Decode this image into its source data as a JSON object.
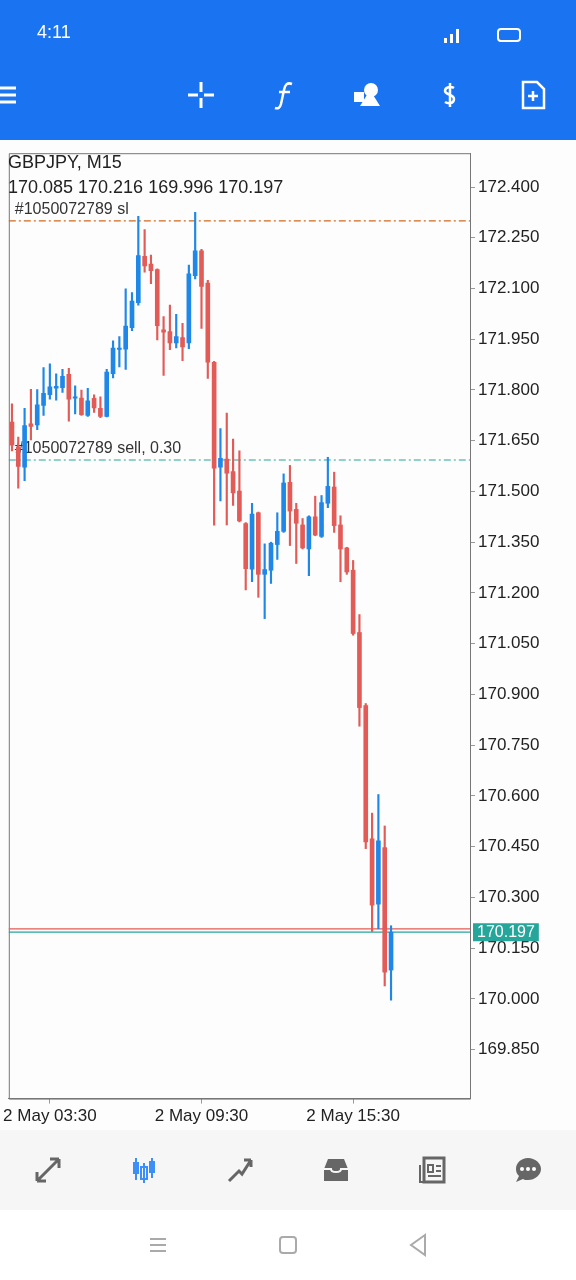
{
  "chart_data": {
    "type": "candlestick",
    "title": "GBPJPY, M15",
    "subtitle": "170.085 170.216 169.996 170.197",
    "annotations": [
      "4:11"
    ],
    "categories": [
      null,
      null,
      null,
      null,
      null,
      null,
      "2 May 03:30",
      null,
      null,
      null,
      null,
      null,
      null,
      null,
      null,
      null,
      null,
      null,
      null,
      null,
      null,
      null,
      null,
      null,
      null,
      null,
      null,
      null,
      null,
      null,
      "2 May 09:30",
      null,
      null,
      null,
      null,
      null,
      null,
      null,
      null,
      null,
      null,
      null,
      null,
      null,
      null,
      null,
      null,
      null,
      null,
      null,
      null,
      null,
      null,
      null,
      "2 May 15:30",
      null,
      null,
      null,
      null,
      null,
      null,
      null,
      null,
      null,
      null,
      null,
      null,
      null,
      null,
      null,
      null,
      null,
      null
    ],
    "ohlc": [
      [
        171.705,
        171.759,
        171.62,
        171.637
      ],
      [
        171.632,
        171.661,
        171.51,
        171.574
      ],
      [
        171.572,
        171.746,
        171.532,
        171.695
      ],
      [
        171.7,
        171.802,
        171.652,
        171.692
      ],
      [
        171.697,
        171.801,
        171.683,
        171.756
      ],
      [
        171.754,
        171.866,
        171.725,
        171.79
      ],
      [
        171.786,
        171.877,
        171.773,
        171.809
      ],
      [
        171.805,
        171.848,
        171.77,
        171.811
      ],
      [
        171.807,
        171.861,
        171.793,
        171.84
      ],
      [
        171.846,
        171.864,
        171.708,
        171.773
      ],
      [
        171.776,
        171.812,
        171.729,
        171.78
      ],
      [
        171.776,
        171.8,
        171.725,
        171.727
      ],
      [
        171.725,
        171.805,
        171.722,
        171.768
      ],
      [
        171.775,
        171.786,
        171.734,
        171.747
      ],
      [
        171.746,
        171.78,
        171.718,
        171.722
      ],
      [
        171.722,
        171.861,
        171.72,
        171.853
      ],
      [
        171.848,
        171.945,
        171.836,
        171.924
      ],
      [
        171.92,
        171.958,
        171.868,
        171.924
      ],
      [
        171.921,
        172.099,
        171.861,
        171.989
      ],
      [
        171.984,
        172.088,
        171.975,
        172.063
      ],
      [
        172.058,
        172.313,
        172.051,
        172.197
      ],
      [
        172.195,
        172.274,
        172.148,
        172.167
      ],
      [
        172.172,
        172.199,
        172.114,
        172.153
      ],
      [
        172.156,
        172.158,
        171.948,
        171.99
      ],
      [
        171.978,
        172.017,
        171.843,
        171.971
      ],
      [
        171.973,
        172.051,
        171.919,
        171.939
      ],
      [
        171.939,
        172.024,
        171.924,
        171.958
      ],
      [
        171.955,
        171.997,
        171.887,
        171.927
      ],
      [
        171.939,
        172.169,
        171.922,
        172.143
      ],
      [
        172.138,
        172.325,
        172.128,
        172.211
      ],
      [
        172.211,
        172.216,
        171.982,
        172.106
      ],
      [
        172.116,
        172.124,
        171.834,
        171.882
      ],
      [
        171.882,
        171.885,
        171.4,
        171.569
      ],
      [
        171.572,
        171.686,
        171.472,
        171.598
      ],
      [
        171.596,
        171.732,
        171.401,
        171.554
      ],
      [
        171.559,
        171.655,
        171.459,
        171.496
      ],
      [
        171.501,
        171.62,
        171.41,
        171.413
      ],
      [
        171.405,
        171.408,
        171.209,
        171.272
      ],
      [
        171.27,
        171.465,
        171.233,
        171.433
      ],
      [
        171.437,
        171.439,
        171.187,
        171.255
      ],
      [
        171.255,
        171.345,
        171.124,
        171.269
      ],
      [
        171.267,
        171.35,
        171.228,
        171.347
      ],
      [
        171.343,
        171.437,
        171.299,
        171.382
      ],
      [
        171.382,
        171.552,
        171.379,
        171.525
      ],
      [
        171.527,
        171.577,
        171.34,
        171.442
      ],
      [
        171.447,
        171.465,
        171.287,
        171.406
      ],
      [
        171.401,
        171.42,
        171.33,
        171.333
      ],
      [
        171.33,
        171.428,
        171.251,
        171.425
      ],
      [
        171.425,
        171.486,
        171.369,
        171.371
      ],
      [
        171.367,
        171.488,
        171.364,
        171.467
      ],
      [
        171.465,
        171.601,
        171.452,
        171.515
      ],
      [
        171.513,
        171.557,
        171.379,
        171.399
      ],
      [
        171.401,
        171.428,
        171.233,
        171.33
      ],
      [
        171.333,
        171.335,
        171.255,
        171.262
      ],
      [
        171.267,
        171.296,
        171.075,
        171.08
      ],
      [
        171.083,
        171.136,
        170.806,
        170.861
      ],
      [
        170.867,
        170.873,
        170.444,
        170.464
      ],
      [
        170.473,
        170.549,
        170.199,
        170.277
      ],
      [
        170.28,
        170.604,
        170.207,
        170.467
      ],
      [
        170.447,
        170.511,
        170.038,
        170.079
      ],
      [
        170.085,
        170.216,
        169.996,
        170.197
      ],
      null,
      null,
      null,
      null,
      null,
      null,
      null,
      null,
      null,
      null,
      null,
      null
    ],
    "colors": [
      "#e35b57",
      "#e35b57",
      "#1f87e8",
      "#e35b57",
      "#1f87e8",
      "#1f87e8",
      "#1f87e8",
      "#1f87e8",
      "#1f87e8",
      "#e35b57",
      "#1f87e8",
      "#e35b57",
      "#1f87e8",
      "#e35b57",
      "#e35b57",
      "#1f87e8",
      "#1f87e8",
      "#1f87e8",
      "#1f87e8",
      "#1f87e8",
      "#1f87e8",
      "#e35b57",
      "#e35b57",
      "#e35b57",
      "#e35b57",
      "#e35b57",
      "#1f87e8",
      "#e35b57",
      "#1f87e8",
      "#1f87e8",
      "#e35b57",
      "#e35b57",
      "#e35b57",
      "#1f87e8",
      "#e35b57",
      "#e35b57",
      "#e35b57",
      "#e35b57",
      "#1f87e8",
      "#e35b57",
      "#1f87e8",
      "#1f87e8",
      "#1f87e8",
      "#1f87e8",
      "#e35b57",
      "#e35b57",
      "#e35b57",
      "#1f87e8",
      "#e35b57",
      "#1f87e8",
      "#1f87e8",
      "#e35b57",
      "#e35b57",
      "#e35b57",
      "#e35b57",
      "#e35b57",
      "#e35b57",
      "#e35b57",
      "#1f87e8",
      "#e35b57",
      "#1f87e8",
      null,
      null,
      null,
      null,
      null,
      null,
      null,
      null,
      null,
      null,
      null,
      null
    ],
    "ylim": [
      169.705,
      172.5
    ],
    "yticks": [
      {
        "value": 169.85,
        "label": "169.850"
      },
      {
        "value": 170,
        "label": "170.000"
      },
      {
        "value": 170.15,
        "label": "170.150"
      },
      {
        "value": 170.3,
        "label": "170.300"
      },
      {
        "value": 170.45,
        "label": "170.450"
      },
      {
        "value": 170.6,
        "label": "170.600"
      },
      {
        "value": 170.75,
        "label": "170.750"
      },
      {
        "value": 170.9,
        "label": "170.900"
      },
      {
        "value": 171.05,
        "label": "171.050"
      },
      {
        "value": 171.2,
        "label": "171.200"
      },
      {
        "value": 171.35,
        "label": "171.350"
      },
      {
        "value": 171.5,
        "label": "171.500"
      },
      {
        "value": 171.65,
        "label": "171.650"
      },
      {
        "value": 171.8,
        "label": "171.800"
      },
      {
        "value": 171.95,
        "label": "171.950"
      },
      {
        "value": 172.1,
        "label": "172.100"
      },
      {
        "value": 172.25,
        "label": "172.250"
      },
      {
        "value": 172.4,
        "label": "172.400"
      }
    ],
    "ref_lines": [
      {
        "axis": "y",
        "value": 172.3,
        "label": "#1050072789 sl",
        "color": "#d2691e",
        "line_style": "dashdot"
      },
      {
        "axis": "y",
        "value": 171.593,
        "label": "#1050072789 sell, 0.30",
        "color": "#26a69a",
        "line_style": "dashdot"
      },
      {
        "axis": "y",
        "value": 170.207,
        "color": "#e35b57",
        "line_style": "solid"
      },
      {
        "axis": "y",
        "value": 170.197,
        "label": "170.197",
        "color": "#26a69a",
        "line_style": "solid"
      }
    ],
    "grid": false,
    "legend": false
  }
}
